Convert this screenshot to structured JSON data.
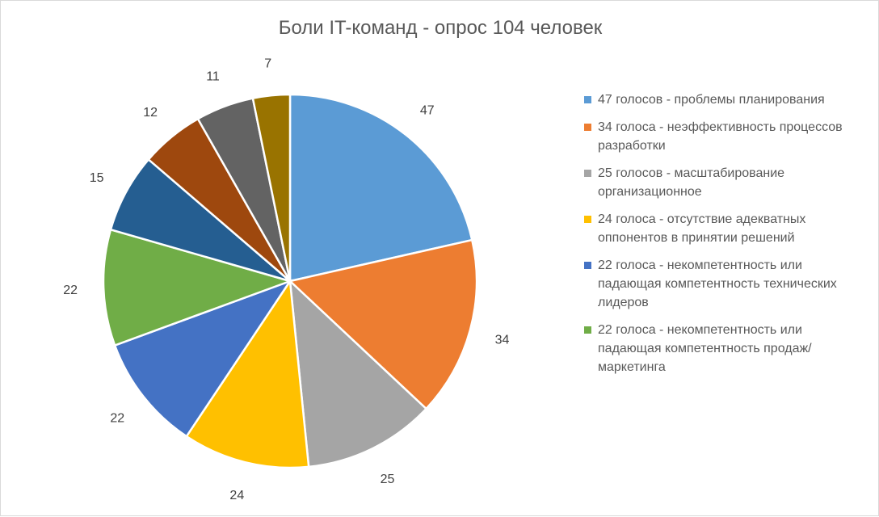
{
  "chart_data": {
    "type": "pie",
    "title": "Боли IT-команд - опрос 104 человек",
    "categories": [
      "47 голосов - проблемы планирования",
      "34 голоса - неэффективность процессов разработки",
      "25 голосов - масштабирование организационное",
      "24 голоса - отсутствие адекватных оппонентов в принятии решений",
      "22 голоса - некомпетентность или падающая компетентность технических лидеров",
      "22 голоса - некомпетентность или падающая компетентность продаж/маркетинга",
      "",
      "",
      "",
      ""
    ],
    "values": [
      47,
      34,
      25,
      24,
      22,
      22,
      15,
      12,
      11,
      7
    ],
    "colors": [
      "#5B9BD5",
      "#ED7D31",
      "#A5A5A5",
      "#FFC000",
      "#4472C4",
      "#70AD47",
      "#255E91",
      "#9E480E",
      "#636363",
      "#997300"
    ],
    "legend_position": "right",
    "legend_entries": [
      {
        "label": "47 голосов - проблемы планирования",
        "color": "#5B9BD5"
      },
      {
        "label": "34 голоса - неэффективность процессов разработки",
        "color": "#ED7D31"
      },
      {
        "label": "25 голосов - масштабирование организационное",
        "color": "#A5A5A5"
      },
      {
        "label": "24 голоса - отсутствие адекватных оппонентов в принятии решений",
        "color": "#FFC000"
      },
      {
        "label": "22 голоса - некомпетентность или падающая компетентность технических лидеров",
        "color": "#4472C4"
      },
      {
        "label": "22 голоса - некомпетентность или падающая компетентность продаж/маркетинга",
        "color": "#70AD47"
      }
    ]
  }
}
